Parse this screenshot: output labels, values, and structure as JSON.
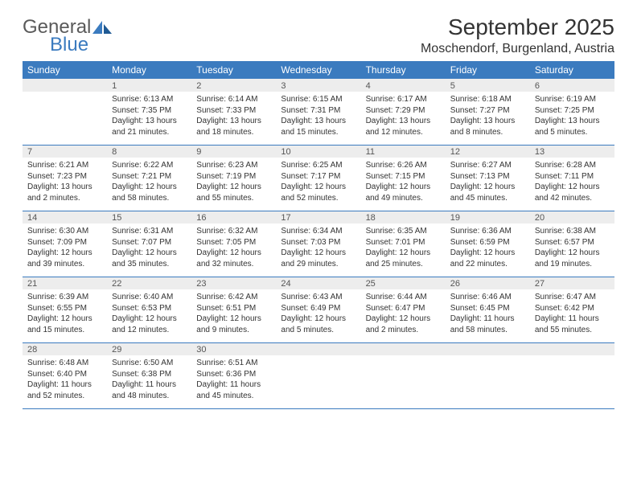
{
  "brand": {
    "part1": "General",
    "part2": "Blue"
  },
  "title": "September 2025",
  "location": "Moschendorf, Burgenland, Austria",
  "colors": {
    "header_bg": "#3b7bbf",
    "header_text": "#ffffff",
    "daynum_bg": "#ededed",
    "row_border": "#3b7bbf",
    "text": "#333333",
    "logo_gray": "#5a5a5a",
    "logo_blue": "#3b7bbf"
  },
  "day_headers": [
    "Sunday",
    "Monday",
    "Tuesday",
    "Wednesday",
    "Thursday",
    "Friday",
    "Saturday"
  ],
  "weeks": [
    {
      "nums": [
        "",
        "1",
        "2",
        "3",
        "4",
        "5",
        "6"
      ],
      "cells": [
        null,
        {
          "sunrise": "Sunrise: 6:13 AM",
          "sunset": "Sunset: 7:35 PM",
          "d1": "Daylight: 13 hours",
          "d2": "and 21 minutes."
        },
        {
          "sunrise": "Sunrise: 6:14 AM",
          "sunset": "Sunset: 7:33 PM",
          "d1": "Daylight: 13 hours",
          "d2": "and 18 minutes."
        },
        {
          "sunrise": "Sunrise: 6:15 AM",
          "sunset": "Sunset: 7:31 PM",
          "d1": "Daylight: 13 hours",
          "d2": "and 15 minutes."
        },
        {
          "sunrise": "Sunrise: 6:17 AM",
          "sunset": "Sunset: 7:29 PM",
          "d1": "Daylight: 13 hours",
          "d2": "and 12 minutes."
        },
        {
          "sunrise": "Sunrise: 6:18 AM",
          "sunset": "Sunset: 7:27 PM",
          "d1": "Daylight: 13 hours",
          "d2": "and 8 minutes."
        },
        {
          "sunrise": "Sunrise: 6:19 AM",
          "sunset": "Sunset: 7:25 PM",
          "d1": "Daylight: 13 hours",
          "d2": "and 5 minutes."
        }
      ]
    },
    {
      "nums": [
        "7",
        "8",
        "9",
        "10",
        "11",
        "12",
        "13"
      ],
      "cells": [
        {
          "sunrise": "Sunrise: 6:21 AM",
          "sunset": "Sunset: 7:23 PM",
          "d1": "Daylight: 13 hours",
          "d2": "and 2 minutes."
        },
        {
          "sunrise": "Sunrise: 6:22 AM",
          "sunset": "Sunset: 7:21 PM",
          "d1": "Daylight: 12 hours",
          "d2": "and 58 minutes."
        },
        {
          "sunrise": "Sunrise: 6:23 AM",
          "sunset": "Sunset: 7:19 PM",
          "d1": "Daylight: 12 hours",
          "d2": "and 55 minutes."
        },
        {
          "sunrise": "Sunrise: 6:25 AM",
          "sunset": "Sunset: 7:17 PM",
          "d1": "Daylight: 12 hours",
          "d2": "and 52 minutes."
        },
        {
          "sunrise": "Sunrise: 6:26 AM",
          "sunset": "Sunset: 7:15 PM",
          "d1": "Daylight: 12 hours",
          "d2": "and 49 minutes."
        },
        {
          "sunrise": "Sunrise: 6:27 AM",
          "sunset": "Sunset: 7:13 PM",
          "d1": "Daylight: 12 hours",
          "d2": "and 45 minutes."
        },
        {
          "sunrise": "Sunrise: 6:28 AM",
          "sunset": "Sunset: 7:11 PM",
          "d1": "Daylight: 12 hours",
          "d2": "and 42 minutes."
        }
      ]
    },
    {
      "nums": [
        "14",
        "15",
        "16",
        "17",
        "18",
        "19",
        "20"
      ],
      "cells": [
        {
          "sunrise": "Sunrise: 6:30 AM",
          "sunset": "Sunset: 7:09 PM",
          "d1": "Daylight: 12 hours",
          "d2": "and 39 minutes."
        },
        {
          "sunrise": "Sunrise: 6:31 AM",
          "sunset": "Sunset: 7:07 PM",
          "d1": "Daylight: 12 hours",
          "d2": "and 35 minutes."
        },
        {
          "sunrise": "Sunrise: 6:32 AM",
          "sunset": "Sunset: 7:05 PM",
          "d1": "Daylight: 12 hours",
          "d2": "and 32 minutes."
        },
        {
          "sunrise": "Sunrise: 6:34 AM",
          "sunset": "Sunset: 7:03 PM",
          "d1": "Daylight: 12 hours",
          "d2": "and 29 minutes."
        },
        {
          "sunrise": "Sunrise: 6:35 AM",
          "sunset": "Sunset: 7:01 PM",
          "d1": "Daylight: 12 hours",
          "d2": "and 25 minutes."
        },
        {
          "sunrise": "Sunrise: 6:36 AM",
          "sunset": "Sunset: 6:59 PM",
          "d1": "Daylight: 12 hours",
          "d2": "and 22 minutes."
        },
        {
          "sunrise": "Sunrise: 6:38 AM",
          "sunset": "Sunset: 6:57 PM",
          "d1": "Daylight: 12 hours",
          "d2": "and 19 minutes."
        }
      ]
    },
    {
      "nums": [
        "21",
        "22",
        "23",
        "24",
        "25",
        "26",
        "27"
      ],
      "cells": [
        {
          "sunrise": "Sunrise: 6:39 AM",
          "sunset": "Sunset: 6:55 PM",
          "d1": "Daylight: 12 hours",
          "d2": "and 15 minutes."
        },
        {
          "sunrise": "Sunrise: 6:40 AM",
          "sunset": "Sunset: 6:53 PM",
          "d1": "Daylight: 12 hours",
          "d2": "and 12 minutes."
        },
        {
          "sunrise": "Sunrise: 6:42 AM",
          "sunset": "Sunset: 6:51 PM",
          "d1": "Daylight: 12 hours",
          "d2": "and 9 minutes."
        },
        {
          "sunrise": "Sunrise: 6:43 AM",
          "sunset": "Sunset: 6:49 PM",
          "d1": "Daylight: 12 hours",
          "d2": "and 5 minutes."
        },
        {
          "sunrise": "Sunrise: 6:44 AM",
          "sunset": "Sunset: 6:47 PM",
          "d1": "Daylight: 12 hours",
          "d2": "and 2 minutes."
        },
        {
          "sunrise": "Sunrise: 6:46 AM",
          "sunset": "Sunset: 6:45 PM",
          "d1": "Daylight: 11 hours",
          "d2": "and 58 minutes."
        },
        {
          "sunrise": "Sunrise: 6:47 AM",
          "sunset": "Sunset: 6:42 PM",
          "d1": "Daylight: 11 hours",
          "d2": "and 55 minutes."
        }
      ]
    },
    {
      "nums": [
        "28",
        "29",
        "30",
        "",
        "",
        "",
        ""
      ],
      "cells": [
        {
          "sunrise": "Sunrise: 6:48 AM",
          "sunset": "Sunset: 6:40 PM",
          "d1": "Daylight: 11 hours",
          "d2": "and 52 minutes."
        },
        {
          "sunrise": "Sunrise: 6:50 AM",
          "sunset": "Sunset: 6:38 PM",
          "d1": "Daylight: 11 hours",
          "d2": "and 48 minutes."
        },
        {
          "sunrise": "Sunrise: 6:51 AM",
          "sunset": "Sunset: 6:36 PM",
          "d1": "Daylight: 11 hours",
          "d2": "and 45 minutes."
        },
        null,
        null,
        null,
        null
      ]
    }
  ]
}
